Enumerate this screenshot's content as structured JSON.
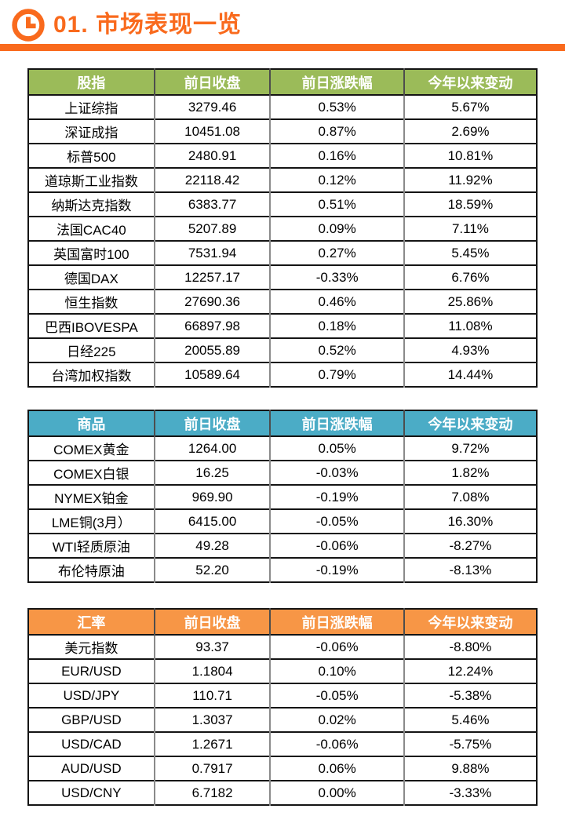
{
  "page": {
    "title": "01. 市场表现一览",
    "accent_color": "#F96A1D",
    "icon": "clock-icon",
    "background": "#FFFFFF"
  },
  "tables": [
    {
      "id": "stock-indices",
      "header_color": "#9BBB59",
      "headers": [
        "股指",
        "前日收盘",
        "前日涨跌幅",
        "今年以来变动"
      ],
      "rows": [
        [
          "上证综指",
          "3279.46",
          "0.53%",
          "5.67%"
        ],
        [
          "深证成指",
          "10451.08",
          "0.87%",
          "2.69%"
        ],
        [
          "标普500",
          "2480.91",
          "0.16%",
          "10.81%"
        ],
        [
          "道琼斯工业指数",
          "22118.42",
          "0.12%",
          "11.92%"
        ],
        [
          "纳斯达克指数",
          "6383.77",
          "0.51%",
          "18.59%"
        ],
        [
          "法国CAC40",
          "5207.89",
          "0.09%",
          "7.11%"
        ],
        [
          "英国富时100",
          "7531.94",
          "0.27%",
          "5.45%"
        ],
        [
          "德国DAX",
          "12257.17",
          "-0.33%",
          "6.76%"
        ],
        [
          "恒生指数",
          "27690.36",
          "0.46%",
          "25.86%"
        ],
        [
          "巴西IBOVESPA",
          "66897.98",
          "0.18%",
          "11.08%"
        ],
        [
          "日经225",
          "20055.89",
          "0.52%",
          "4.93%"
        ],
        [
          "台湾加权指数",
          "10589.64",
          "0.79%",
          "14.44%"
        ]
      ]
    },
    {
      "id": "commodities",
      "header_color": "#4BACC6",
      "headers": [
        "商品",
        "前日收盘",
        "前日涨跌幅",
        "今年以来变动"
      ],
      "rows": [
        [
          "COMEX黄金",
          "1264.00",
          "0.05%",
          "9.72%"
        ],
        [
          "COMEX白银",
          "16.25",
          "-0.03%",
          "1.82%"
        ],
        [
          "NYMEX铂金",
          "969.90",
          "-0.19%",
          "7.08%"
        ],
        [
          "LME铜(3月）",
          "6415.00",
          "-0.05%",
          "16.30%"
        ],
        [
          "WTI轻质原油",
          "49.28",
          "-0.06%",
          "-8.27%"
        ],
        [
          "布伦特原油",
          "52.20",
          "-0.19%",
          "-8.13%"
        ]
      ]
    },
    {
      "id": "fx-rates",
      "header_color": "#F79646",
      "headers": [
        "汇率",
        "前日收盘",
        "前日涨跌幅",
        "今年以来变动"
      ],
      "rows": [
        [
          "美元指数",
          "93.37",
          "-0.06%",
          "-8.80%"
        ],
        [
          "EUR/USD",
          "1.1804",
          "0.10%",
          "12.24%"
        ],
        [
          "USD/JPY",
          "110.71",
          "-0.05%",
          "-5.38%"
        ],
        [
          "GBP/USD",
          "1.3037",
          "0.02%",
          "5.46%"
        ],
        [
          "USD/CAD",
          "1.2671",
          "-0.06%",
          "-5.75%"
        ],
        [
          "AUD/USD",
          "0.7917",
          "0.06%",
          "9.88%"
        ],
        [
          "USD/CNY",
          "6.7182",
          "0.00%",
          "-3.33%"
        ]
      ]
    }
  ]
}
